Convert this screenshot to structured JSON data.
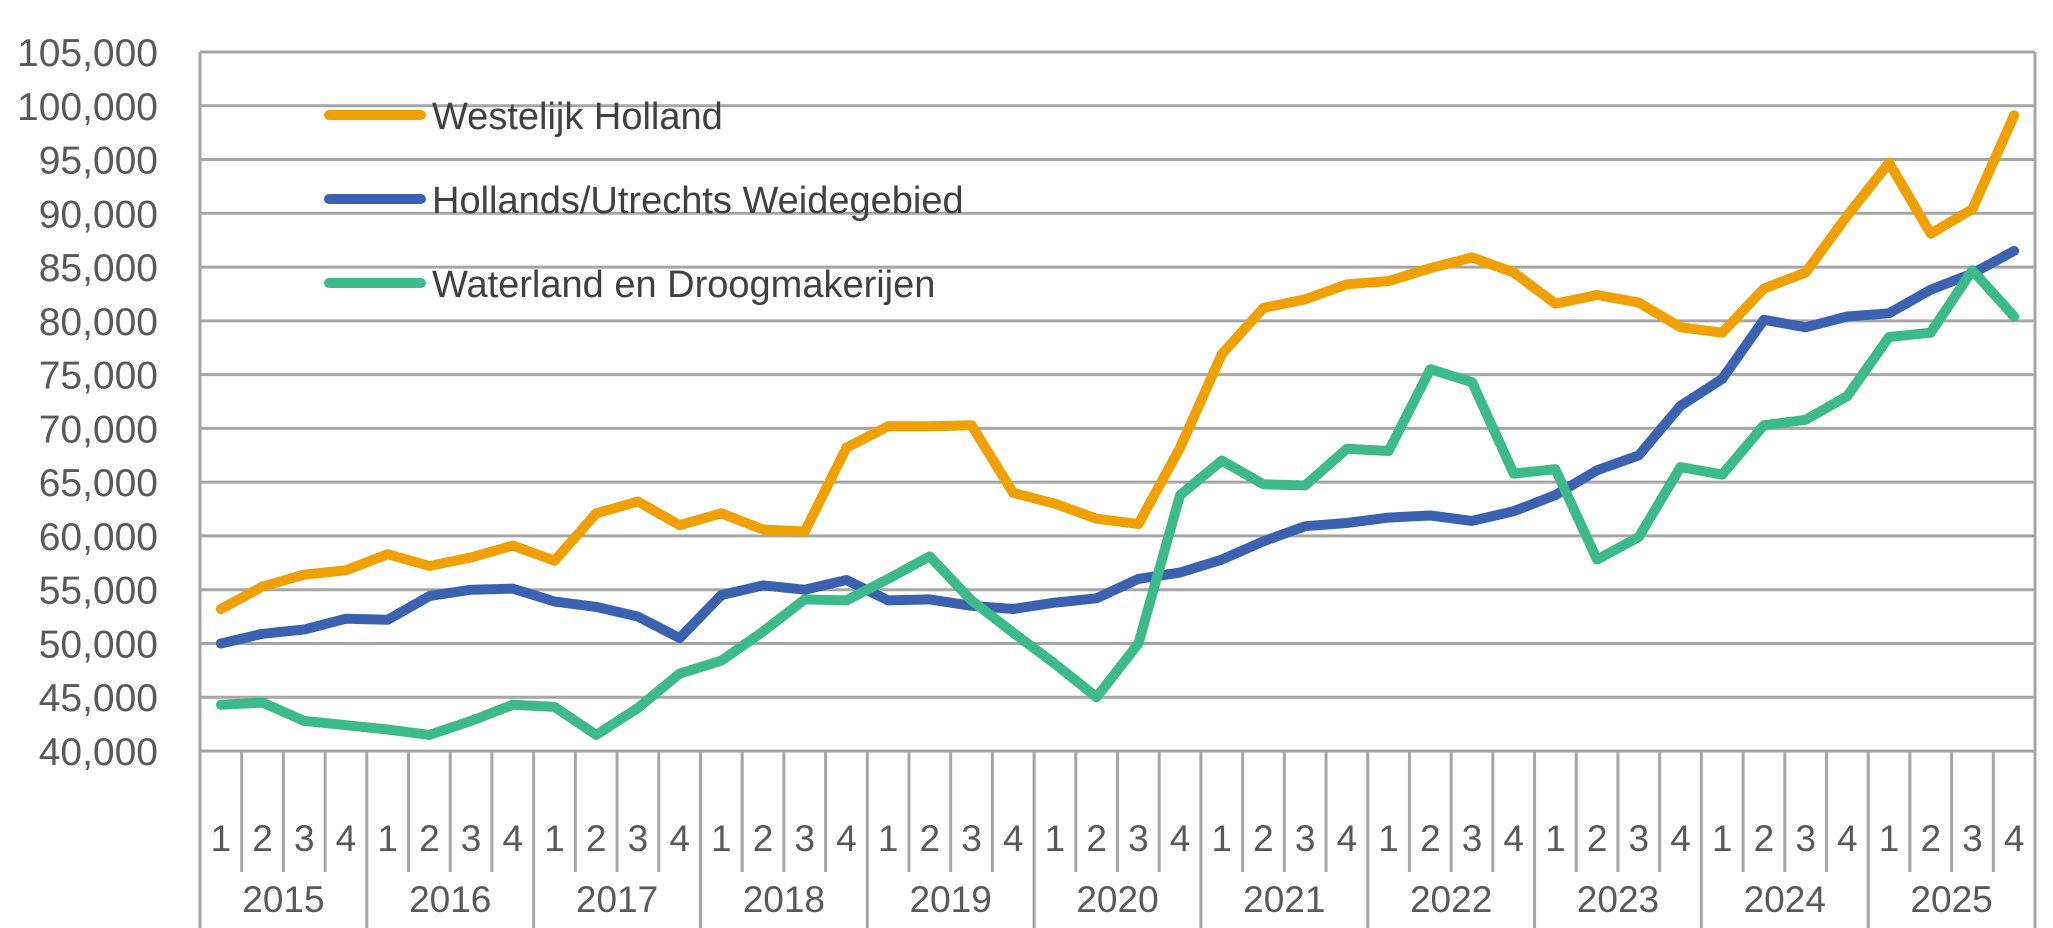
{
  "chart_data": {
    "type": "line",
    "title": "",
    "xlabel": "",
    "ylabel": "",
    "ylim": [
      40000,
      105000
    ],
    "ytick_step": 5000,
    "grid": "horizontal",
    "legend_placement": "top-left",
    "years": [
      "2015",
      "2016",
      "2017",
      "2018",
      "2019",
      "2020",
      "2021",
      "2022",
      "2023",
      "2024",
      "2025"
    ],
    "quarters": [
      "1",
      "2",
      "3",
      "4"
    ],
    "series": [
      {
        "name": "Westelijk Holland",
        "color": "#F0A000",
        "values": [
          53200,
          55300,
          56400,
          56800,
          58300,
          57200,
          58000,
          59100,
          57700,
          62100,
          63200,
          61000,
          62100,
          60600,
          60400,
          68200,
          70200,
          70200,
          70300,
          64000,
          63000,
          61600,
          61100,
          68200,
          76900,
          81200,
          82000,
          83400,
          83700,
          84900,
          85900,
          84500,
          81600,
          82400,
          81700,
          79400,
          78900,
          83000,
          84500,
          89800,
          94700,
          88100,
          90400,
          99100
        ]
      },
      {
        "name": "Hollands/Utrechts Weidegebied",
        "color": "#3A62B0",
        "values": [
          50000,
          50900,
          51300,
          52300,
          52200,
          54400,
          55000,
          55100,
          53900,
          53400,
          52500,
          50500,
          54500,
          55400,
          55000,
          55900,
          54000,
          54100,
          53500,
          53200,
          53800,
          54200,
          56000,
          56600,
          57800,
          59500,
          60900,
          61200,
          61700,
          61900,
          61400,
          62300,
          63800,
          66100,
          67500,
          72100,
          74600,
          80100,
          79400,
          80400,
          80700,
          82900,
          84400,
          86500
        ]
      },
      {
        "name": "Waterland en Droogmakerijen",
        "color": "#3DBA8A",
        "values": [
          44300,
          44500,
          42800,
          42400,
          42000,
          41500,
          42800,
          44300,
          44100,
          41500,
          44000,
          47200,
          48400,
          51100,
          54100,
          54000,
          56000,
          58100,
          54000,
          51000,
          48100,
          45000,
          50000,
          63800,
          67000,
          64800,
          64700,
          68100,
          67900,
          75500,
          74300,
          65800,
          66200,
          57800,
          59900,
          66400,
          65700,
          70300,
          70800,
          73000,
          78500,
          78900,
          84700,
          80400
        ]
      }
    ]
  }
}
